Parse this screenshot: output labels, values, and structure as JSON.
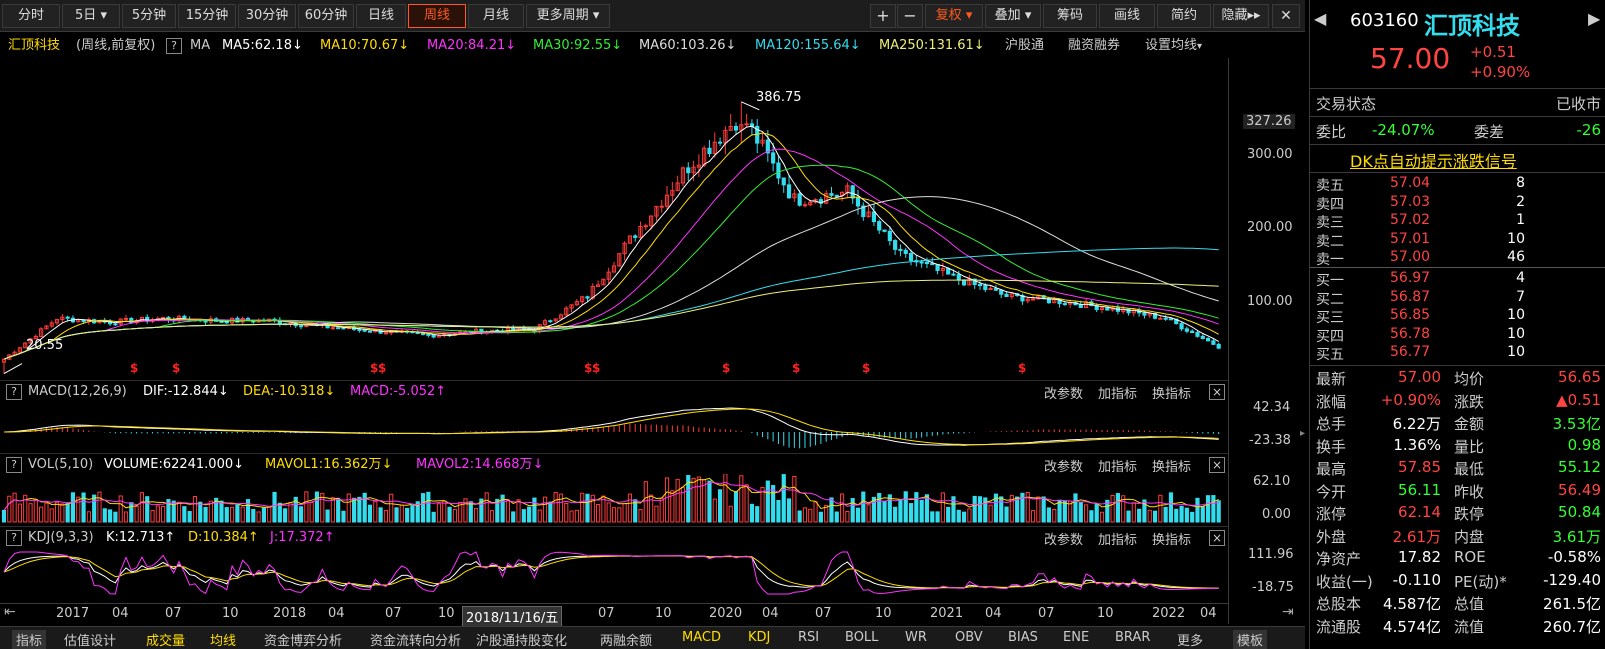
{
  "toolbar": {
    "periods": [
      "分时",
      "5日",
      "5分钟",
      "15分钟",
      "30分钟",
      "60分钟",
      "日线",
      "周线",
      "月线",
      "更多周期"
    ],
    "active_period": "周线",
    "zoom_in": "+",
    "zoom_out": "−",
    "restore": "复权",
    "overlay": "叠加",
    "chips": "筹码",
    "draw": "画线",
    "simple": "简约",
    "hide": "隐藏"
  },
  "main": {
    "name": "汇顶科技",
    "mode": "(周线,前复权)",
    "help": "?",
    "ma_label": "MA",
    "ma": [
      {
        "label": "MA5:62.18",
        "arrow": "↓",
        "color": "#ffffff"
      },
      {
        "label": "MA10:70.67",
        "arrow": "↓",
        "color": "#ffdd00"
      },
      {
        "label": "MA20:84.21",
        "arrow": "↓",
        "color": "#ff33ff"
      },
      {
        "label": "MA30:92.55",
        "arrow": "↓",
        "color": "#33ee33"
      },
      {
        "label": "MA60:103.26",
        "arrow": "↓",
        "color": "#dddddd"
      },
      {
        "label": "MA120:155.64",
        "arrow": "↓",
        "color": "#33ddee"
      },
      {
        "label": "MA250:131.61",
        "arrow": "↓",
        "color": "#eeee77"
      }
    ],
    "hgt": "沪股通",
    "margin": "融资融券",
    "setma": "设置均线",
    "y_ticks": [
      "327.26",
      "300.00",
      "200.00",
      "100.00"
    ],
    "high_label": "386.75",
    "low_label": "20.55"
  },
  "macd": {
    "help": "?",
    "title": "MACD(12,26,9)",
    "dif": "DIF:-12.844",
    "dea": "DEA:-10.318",
    "macd": "MACD:-5.052",
    "y_ticks": [
      "42.34",
      "-23.38"
    ]
  },
  "vol": {
    "help": "?",
    "title": "VOL(5,10)",
    "volume": "VOLUME:62241.000",
    "mavol1": "MAVOL1:16.362万",
    "mavol2": "MAVOL2:14.668万",
    "y_ticks": [
      "62.10",
      "0.00"
    ]
  },
  "kdj": {
    "help": "?",
    "title": "KDJ(9,3,3)",
    "k": "K:12.713",
    "d": "D:10.384",
    "j": "J:17.372",
    "y_ticks": [
      "111.96",
      "-18.75"
    ]
  },
  "panel_controls": {
    "param": "改参数",
    "add": "加指标",
    "switch": "换指标",
    "close": "×"
  },
  "x_axis": {
    "labels": [
      "2017",
      "04",
      "07",
      "10",
      "2018",
      "04",
      "07",
      "10",
      "07",
      "10",
      "2020",
      "04",
      "07",
      "10",
      "2021",
      "04",
      "07",
      "10",
      "2022",
      "04"
    ],
    "cursor": "2018/11/16/五"
  },
  "bottom_tabs": [
    "指标",
    "估值设计",
    "成交量",
    "均线",
    "资金博弈分析",
    "资金流转向分析",
    "沪股通持股变化",
    "两融余额",
    "MACD",
    "KDJ",
    "RSI",
    "BOLL",
    "WR",
    "OBV",
    "BIAS",
    "ENE",
    "BRAR",
    "更多",
    "模板"
  ],
  "quote": {
    "code": "603160",
    "name": "汇顶科技",
    "price": "57.00",
    "change": "+0.51",
    "pct": "+0.90%",
    "status_label": "交易状态",
    "status": "已收市",
    "wb_label": "委比",
    "wb": "-24.07%",
    "wc_label": "委差",
    "wc": "-26",
    "signal": "DK点自动提示涨跌信号",
    "sells": [
      {
        "l": "卖五",
        "p": "57.04",
        "v": "8"
      },
      {
        "l": "卖四",
        "p": "57.03",
        "v": "2"
      },
      {
        "l": "卖三",
        "p": "57.02",
        "v": "1"
      },
      {
        "l": "卖二",
        "p": "57.01",
        "v": "10"
      },
      {
        "l": "卖一",
        "p": "57.00",
        "v": "46"
      }
    ],
    "buys": [
      {
        "l": "买一",
        "p": "56.97",
        "v": "4"
      },
      {
        "l": "买二",
        "p": "56.87",
        "v": "7"
      },
      {
        "l": "买三",
        "p": "56.85",
        "v": "10"
      },
      {
        "l": "买四",
        "p": "56.78",
        "v": "10"
      },
      {
        "l": "买五",
        "p": "56.77",
        "v": "10"
      }
    ],
    "stats": [
      [
        "最新",
        "57.00",
        "均价",
        "56.65"
      ],
      [
        "涨幅",
        "+0.90%",
        "涨跌",
        "▲0.51"
      ],
      [
        "总手",
        "6.22万",
        "金额",
        "3.53亿"
      ],
      [
        "换手",
        "1.36%",
        "量比",
        "0.98"
      ],
      [
        "最高",
        "57.85",
        "最低",
        "55.12"
      ],
      [
        "今开",
        "56.11",
        "昨收",
        "56.49"
      ],
      [
        "涨停",
        "62.14",
        "跌停",
        "50.84"
      ],
      [
        "外盘",
        "2.61万",
        "内盘",
        "3.61万"
      ],
      [
        "净资产",
        "17.82",
        "ROE",
        "-0.58%"
      ],
      [
        "收益(一)",
        "-0.110",
        "PE(动)*",
        "-129.40"
      ],
      [
        "总股本",
        "4.587亿",
        "总值",
        "261.5亿"
      ],
      [
        "流通股",
        "4.574亿",
        "流值",
        "260.7亿"
      ]
    ],
    "colors": {
      "up": "#ff4444",
      "down": "#33ff33",
      "neutral": "#ffffff",
      "yellow": "#ffdd00"
    }
  },
  "chart_data": {
    "type": "candlestick",
    "period": "weekly",
    "x": [
      "2016-11",
      "2017-01",
      "2017-04",
      "2017-07",
      "2017-10",
      "2018-01",
      "2018-04",
      "2018-07",
      "2018-10",
      "2019-01",
      "2019-04",
      "2019-07",
      "2019-10",
      "2020-01",
      "2020-02",
      "2020-04",
      "2020-07",
      "2020-10",
      "2021-01",
      "2021-04",
      "2021-07",
      "2021-10",
      "2022-01",
      "2022-04"
    ],
    "close": [
      40,
      95,
      90,
      95,
      92,
      92,
      84,
      78,
      72,
      78,
      80,
      125,
      210,
      300,
      370,
      255,
      265,
      180,
      150,
      125,
      118,
      108,
      95,
      57
    ],
    "high_label": 386.75,
    "low_label": 20.55,
    "ylim": [
      20,
      400
    ]
  }
}
